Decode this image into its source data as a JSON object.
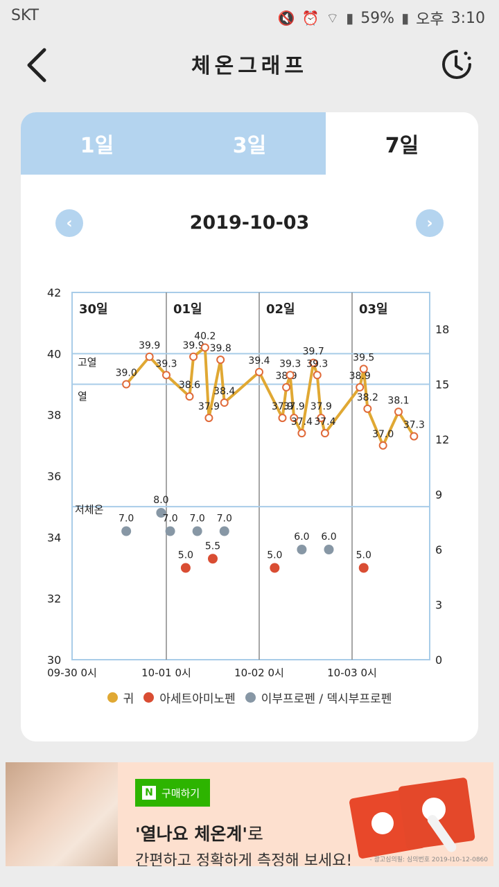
{
  "status_bar": {
    "carrier": "SKT",
    "battery": "59%",
    "ampm": "오후",
    "time": "3:10"
  },
  "header": {
    "title": "체온그래프"
  },
  "tabs": [
    {
      "label": "1일",
      "active": false
    },
    {
      "label": "3일",
      "active": false
    },
    {
      "label": "7일",
      "active": true
    }
  ],
  "date": "2019-10-03",
  "colors": {
    "ear": "#e0a833",
    "acetaminophen": "#d94d33",
    "ibuprofen": "#8797a5",
    "grid": "#a8cce8",
    "tab_bg": "#b4d4ef"
  },
  "chart_data": {
    "type": "scatter",
    "y_left": {
      "min": 30,
      "max": 42,
      "ticks": [
        "30",
        "32",
        "34",
        "36",
        "38",
        "40",
        "42"
      ]
    },
    "y_right": {
      "min": 0,
      "max": 20,
      "ticks": [
        "0",
        "3",
        "6",
        "9",
        "12",
        "15",
        "18"
      ]
    },
    "day_labels": [
      "30일",
      "01일",
      "02일",
      "03일"
    ],
    "x_ticks": [
      "09-30 0시",
      "10-01 0시",
      "10-02 0시",
      "10-03 0시"
    ],
    "zone_labels": {
      "high": "고열",
      "fever": "열",
      "low": "저체온"
    },
    "reference_lines": {
      "high": 40,
      "fever": 39,
      "low": 35
    },
    "series": [
      {
        "name": "귀",
        "key": "ear",
        "points": [
          {
            "x": "09-30 14:00",
            "y": 39.0
          },
          {
            "x": "09-30 20:00",
            "y": 39.9
          },
          {
            "x": "10-01 00:00",
            "y": 39.3
          },
          {
            "x": "10-01 06:00",
            "y": 38.6
          },
          {
            "x": "10-01 07:00",
            "y": 39.9
          },
          {
            "x": "10-01 10:00",
            "y": 40.2
          },
          {
            "x": "10-01 11:00",
            "y": 37.9
          },
          {
            "x": "10-01 14:00",
            "y": 39.8
          },
          {
            "x": "10-01 15:00",
            "y": 38.4
          },
          {
            "x": "10-02 00:00",
            "y": 39.4
          },
          {
            "x": "10-02 06:00",
            "y": 37.9
          },
          {
            "x": "10-02 07:00",
            "y": 38.9
          },
          {
            "x": "10-02 08:00",
            "y": 39.3
          },
          {
            "x": "10-02 09:00",
            "y": 37.9
          },
          {
            "x": "10-02 11:00",
            "y": 37.4
          },
          {
            "x": "10-02 14:00",
            "y": 39.7
          },
          {
            "x": "10-02 15:00",
            "y": 39.3
          },
          {
            "x": "10-02 16:00",
            "y": 37.9
          },
          {
            "x": "10-02 17:00",
            "y": 37.4
          },
          {
            "x": "10-03 02:00",
            "y": 38.9
          },
          {
            "x": "10-03 03:00",
            "y": 39.5
          },
          {
            "x": "10-03 04:00",
            "y": 38.2
          },
          {
            "x": "10-03 08:00",
            "y": 37.0
          },
          {
            "x": "10-03 12:00",
            "y": 38.1
          },
          {
            "x": "10-03 16:00",
            "y": 37.3
          }
        ]
      },
      {
        "name": "아세트아미노펜",
        "key": "acetaminophen",
        "points": [
          {
            "x": "10-01 05:00",
            "y": 5.0
          },
          {
            "x": "10-01 12:00",
            "y": 5.5
          },
          {
            "x": "10-02 04:00",
            "y": 5.0
          },
          {
            "x": "10-03 03:00",
            "y": 5.0
          }
        ]
      },
      {
        "name": "이부프로펜 / 덱시부프로펜",
        "key": "ibuprofen",
        "points": [
          {
            "x": "09-30 14:00",
            "y": 7.0
          },
          {
            "x": "09-30 23:00",
            "y": 8.0
          },
          {
            "x": "10-01 01:00",
            "y": 7.0
          },
          {
            "x": "10-01 08:00",
            "y": 7.0
          },
          {
            "x": "10-01 15:00",
            "y": 7.0
          },
          {
            "x": "10-02 11:00",
            "y": 6.0
          },
          {
            "x": "10-02 18:00",
            "y": 6.0
          }
        ]
      }
    ]
  },
  "ad": {
    "buy_label": "구매하기",
    "naver_badge": "N",
    "headline_quote": "'열나요 체온계'",
    "headline_tail": "로",
    "subline": "간편하고 정확하게 측정해 보세요!",
    "fine_print": "- 광고심의필: 심의번호 2019-I10-12-0860"
  }
}
